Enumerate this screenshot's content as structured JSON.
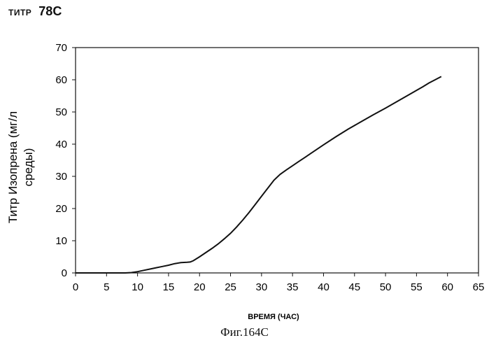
{
  "header": {
    "label_small": "ТИТР",
    "label_big": "78С"
  },
  "figure": {
    "caption": "Фиг.164С"
  },
  "chart_data": {
    "type": "line",
    "title": "",
    "xlabel": "ВРЕМЯ (ЧАС)",
    "ylabel_lines": [
      "Титр Изопрена (мг/л",
      "среды)"
    ],
    "xlim": [
      0,
      65
    ],
    "ylim": [
      0,
      70
    ],
    "xticks": [
      "0",
      "5",
      "10",
      "15",
      "20",
      "25",
      "30",
      "35",
      "40",
      "45",
      "50",
      "55",
      "60",
      "65"
    ],
    "yticks": [
      "0",
      "10",
      "20",
      "30",
      "40",
      "50",
      "60",
      "70"
    ],
    "grid": false,
    "legend": "none",
    "line_color": "#111111",
    "series": [
      {
        "x": [
          0,
          5,
          8,
          9,
          10,
          11,
          12,
          13,
          14,
          15,
          16,
          17,
          18,
          18.5,
          19,
          20,
          21,
          22,
          23,
          24,
          25,
          26,
          27,
          28,
          29,
          30,
          31,
          32,
          33,
          34,
          35,
          36,
          37,
          38,
          39,
          40,
          42,
          44,
          46,
          48,
          50,
          52,
          54,
          56,
          57,
          58,
          59
        ],
        "y": [
          0,
          0,
          0,
          0.1,
          0.4,
          0.8,
          1.2,
          1.6,
          2.0,
          2.4,
          2.9,
          3.2,
          3.3,
          3.4,
          3.8,
          5.0,
          6.3,
          7.6,
          9.0,
          10.6,
          12.3,
          14.3,
          16.5,
          18.8,
          21.3,
          23.8,
          26.3,
          28.8,
          30.6,
          32.0,
          33.3,
          34.6,
          35.9,
          37.2,
          38.5,
          39.8,
          42.3,
          44.7,
          46.9,
          49.1,
          51.2,
          53.4,
          55.6,
          57.8,
          59.0,
          60.0,
          61.0
        ]
      }
    ]
  }
}
